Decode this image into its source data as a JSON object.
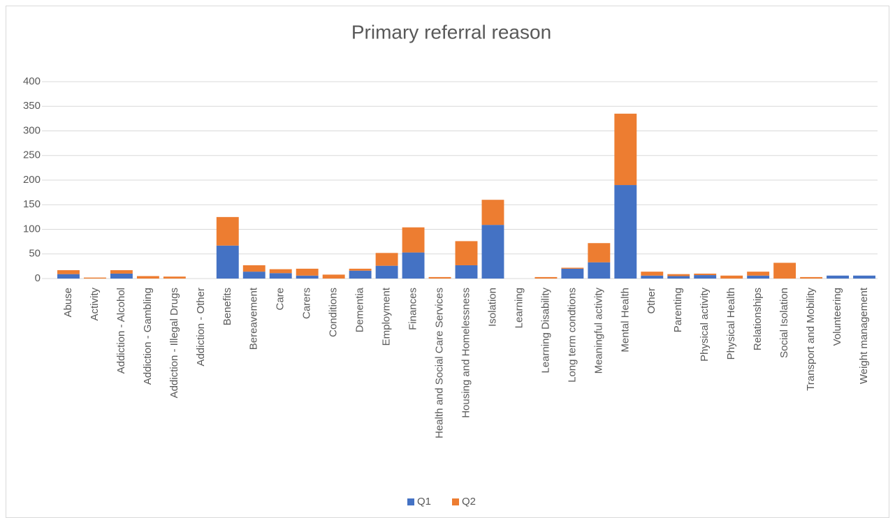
{
  "chart_data": {
    "type": "stacked_bar",
    "title": "Primary referral reason",
    "categories": [
      "Abuse",
      "Activity",
      "Addiction - Alcohol",
      "Addiction - Gambling",
      "Addiction - Illegal Drugs",
      "Addiction - Other",
      "Benefits",
      "Bereavement",
      "Care",
      "Carers",
      "Conditions",
      "Dementia",
      "Employment",
      "Finances",
      "Health and Social Care Services",
      "Housing and Homelessness",
      "Isolation",
      "Learning",
      "Learning Disability",
      "Long term condtions",
      "Meaningful activity",
      "Mental Health",
      "Other",
      "Parenting",
      "Physical activity",
      "Physical Health",
      "Relationships",
      "Social Isolation",
      "Transport and Mobility",
      "Volunteering",
      "Weight management"
    ],
    "series": [
      {
        "name": "Q1",
        "color": "#4472c4",
        "values": [
          9,
          0,
          10,
          0,
          0,
          0,
          67,
          14,
          11,
          6,
          0,
          16,
          26,
          53,
          0,
          27,
          109,
          0,
          0,
          20,
          33,
          190,
          6,
          5,
          7,
          0,
          6,
          0,
          0,
          6,
          6
        ]
      },
      {
        "name": "Q2",
        "color": "#ed7d31",
        "values": [
          8,
          2,
          7,
          5,
          4,
          0,
          58,
          13,
          8,
          14,
          8,
          4,
          26,
          51,
          3,
          49,
          51,
          0,
          3,
          2,
          39,
          145,
          8,
          4,
          3,
          6,
          8,
          32,
          3,
          0,
          0
        ]
      }
    ],
    "ylim": [
      0,
      400
    ],
    "yticks": [
      0,
      50,
      100,
      150,
      200,
      250,
      300,
      350,
      400
    ],
    "grid": true,
    "legend": "bottom"
  }
}
